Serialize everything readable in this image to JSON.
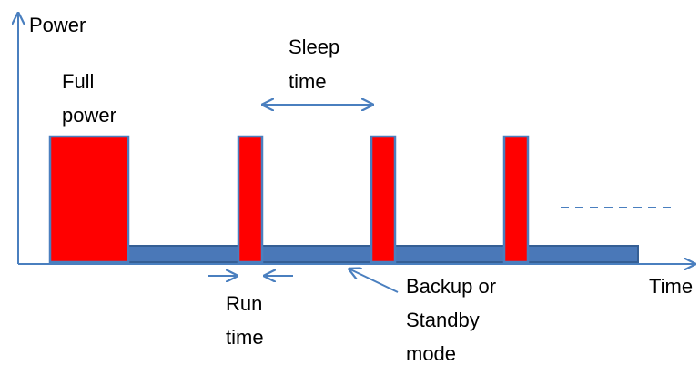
{
  "diagram": {
    "axis_labels": {
      "y": "Power",
      "x": "Time"
    },
    "annotations": {
      "full_power": [
        "Full",
        "power"
      ],
      "sleep_time": [
        "Sleep",
        "time"
      ],
      "run_time": [
        "Run",
        "time"
      ],
      "standby": [
        "Backup or",
        "Standby",
        "mode"
      ]
    },
    "colors": {
      "axis": "#4a7fbf",
      "active_fill": "#ff0000",
      "active_stroke": "#4a7fbf",
      "standby_fill": "#4a78b8",
      "standby_stroke": "#355f95"
    }
  }
}
